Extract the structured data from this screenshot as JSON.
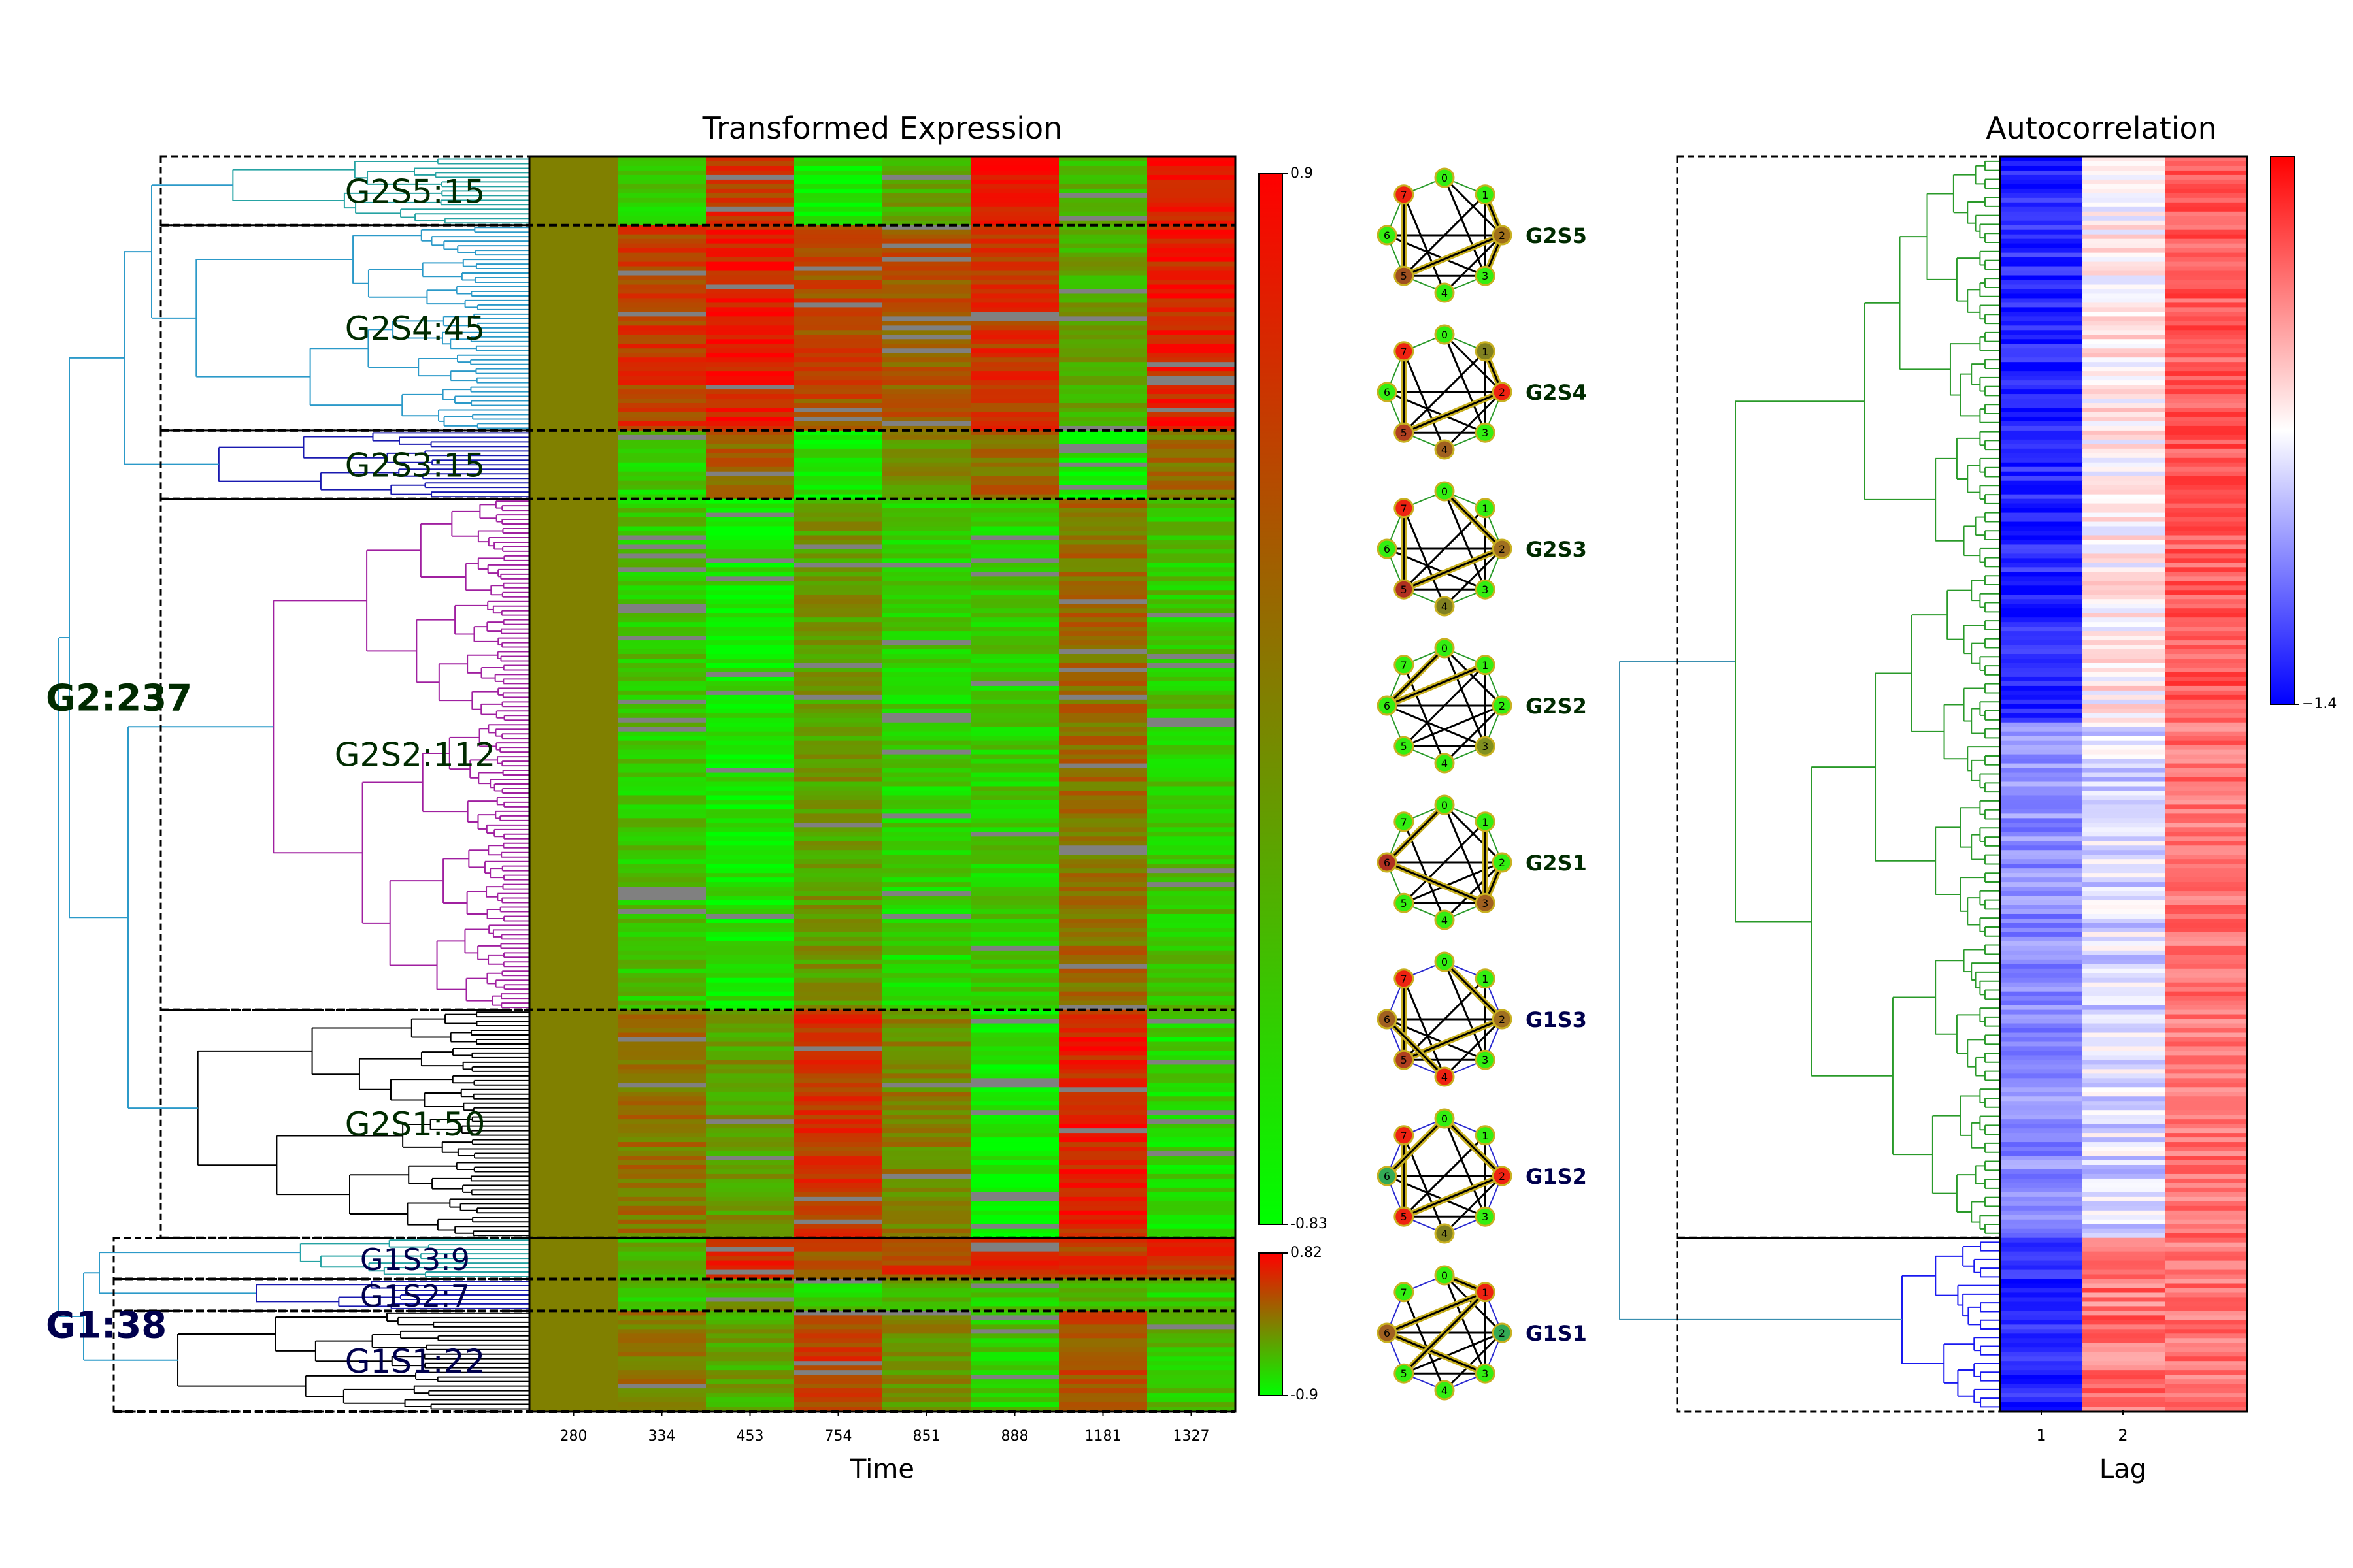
{
  "chart_data": [
    {
      "type": "heatmap",
      "title": "Transformed Expression",
      "xlabel": "Time",
      "x_ticks": [
        "280",
        "334",
        "453",
        "754",
        "851",
        "888",
        "1181",
        "1327"
      ],
      "colorbars": [
        {
          "max_label": "0.9",
          "min_label": "-0.83",
          "colors": [
            "#00ff00",
            "#808000",
            "#ff0000"
          ]
        },
        {
          "max_label": "0.82",
          "min_label": "-0.9",
          "colors": [
            "#00ff00",
            "#808000",
            "#ff0000"
          ]
        }
      ],
      "groups": [
        {
          "label": "G2:237",
          "color": "#002b00"
        },
        {
          "label": "G1:38",
          "color": "#00004d"
        }
      ],
      "clusters": [
        {
          "label": "G2S5:15",
          "n": 15,
          "tree_color": "#26a3a3",
          "profile": [
            0.0,
            -0.6,
            0.6,
            -0.8,
            -0.3,
            0.85,
            -0.5,
            0.8
          ]
        },
        {
          "label": "G2S4:45",
          "n": 45,
          "tree_color": "#2c9ac9",
          "profile": [
            0.0,
            0.55,
            0.8,
            0.4,
            0.3,
            0.6,
            -0.3,
            0.75
          ]
        },
        {
          "label": "G2S3:15",
          "n": 15,
          "tree_color": "#1a1ab0",
          "profile": [
            0.0,
            -0.6,
            0.2,
            -0.8,
            -0.1,
            0.2,
            -0.85,
            0.1
          ]
        },
        {
          "label": "G2S2:112",
          "n": 112,
          "tree_color": "#a020a0",
          "profile": [
            0.0,
            -0.55,
            -0.8,
            -0.2,
            -0.65,
            -0.6,
            0.15,
            -0.55
          ]
        },
        {
          "label": "G2S1:50",
          "n": 50,
          "tree_color": "#000000",
          "profile": [
            0.0,
            0.1,
            -0.2,
            0.6,
            0.0,
            -0.85,
            0.75,
            -0.7
          ]
        },
        {
          "label": "G1S3:9",
          "n": 9,
          "tree_color": "#26a3a3",
          "profile": [
            0.0,
            -0.4,
            0.7,
            0.4,
            0.5,
            0.7,
            0.55,
            0.6
          ]
        },
        {
          "label": "G1S2:7",
          "n": 7,
          "tree_color": "#1a1ab0",
          "profile": [
            0.0,
            -0.5,
            -0.3,
            -0.6,
            -0.4,
            -0.6,
            -0.5,
            -0.6
          ]
        },
        {
          "label": "G1S1:22",
          "n": 22,
          "tree_color": "#000000",
          "profile": [
            0.0,
            0.1,
            -0.3,
            0.5,
            -0.1,
            -0.6,
            0.4,
            -0.5
          ]
        }
      ]
    },
    {
      "type": "diagram",
      "description_labels": [
        "G2S5",
        "G2S4",
        "G2S3",
        "G2S2",
        "G2S1",
        "G1S3",
        "G1S2",
        "G1S1"
      ],
      "node_labels": [
        "0",
        "1",
        "2",
        "3",
        "4",
        "5",
        "6",
        "7"
      ]
    },
    {
      "type": "heatmap",
      "title": "Autocorrelation",
      "xlabel": "Lag",
      "x_ticks": [
        "1",
        "2"
      ],
      "colorbar": {
        "min_label": "−1.4",
        "colors": [
          "#0000ff",
          "#ffffff",
          "#ff0000"
        ]
      },
      "colors": {
        "g2_tree": "#2a9a2a",
        "g1_tree": "#1a1af0",
        "root": "#3a8fb0"
      }
    }
  ]
}
